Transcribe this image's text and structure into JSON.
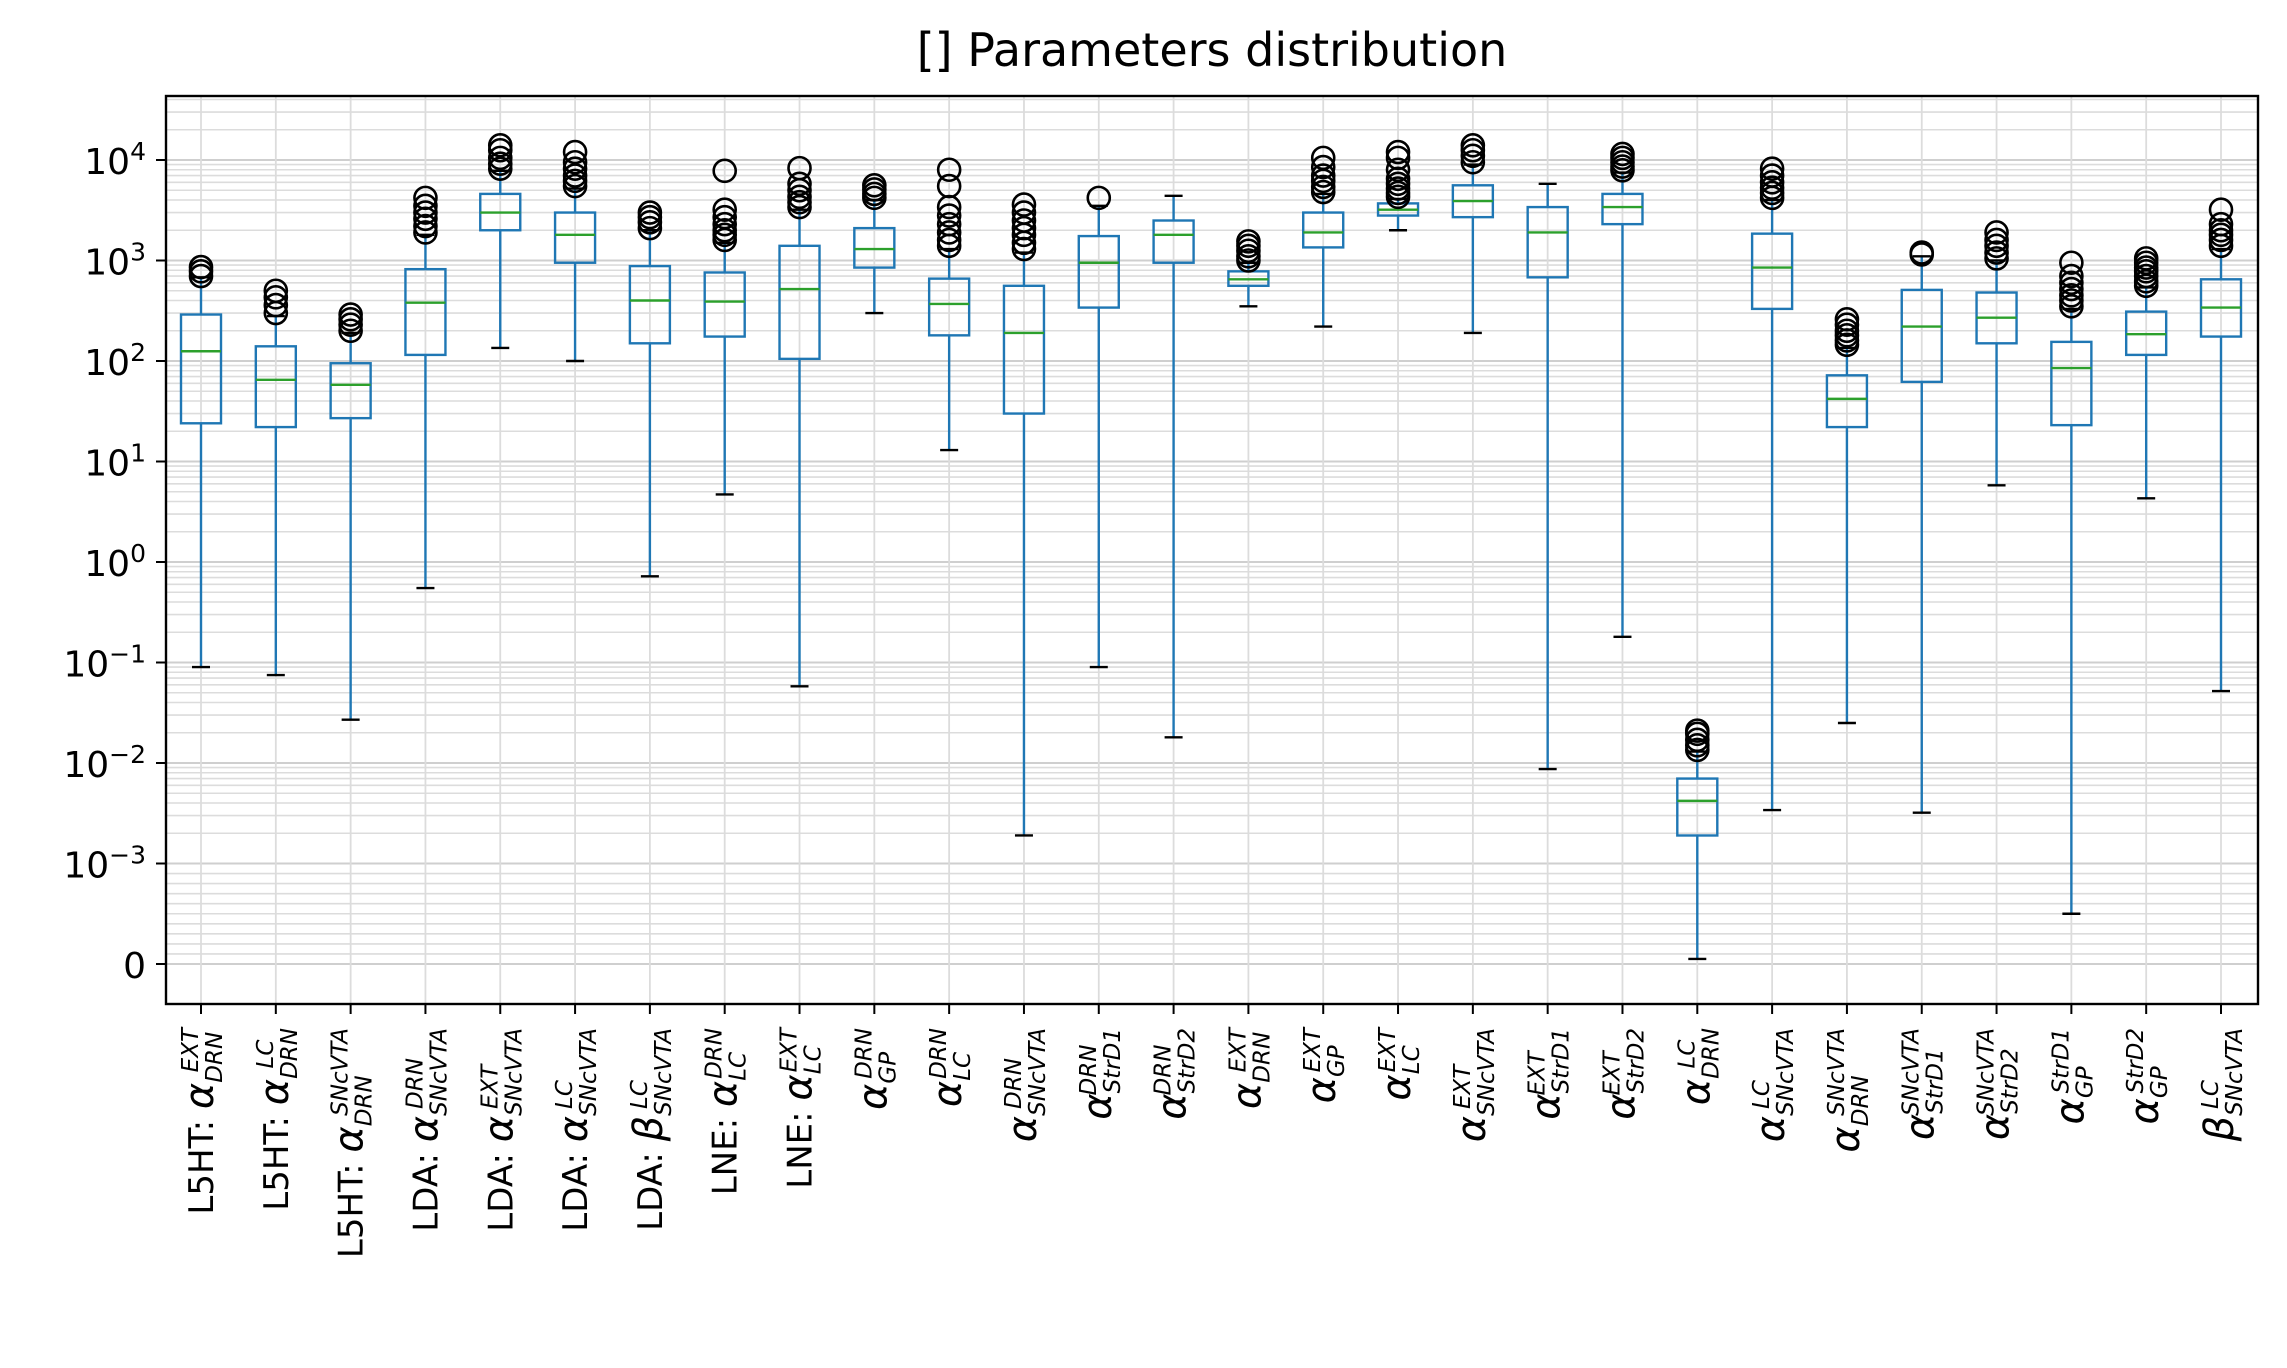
{
  "chart_data": {
    "type": "box",
    "title": "[] Parameters distribution",
    "xlabel": "",
    "ylabel": "",
    "yscale": "symlog",
    "linthresh": 0.001,
    "ylim": [
      -0.0004,
      35000
    ],
    "grid": "both (major and minor), light gray",
    "yticks": [
      {
        "value": 0,
        "base": "0",
        "exp": ""
      },
      {
        "value": 0.001,
        "base": "10",
        "exp": "−3"
      },
      {
        "value": 0.01,
        "base": "10",
        "exp": "−2"
      },
      {
        "value": 0.1,
        "base": "10",
        "exp": "−1"
      },
      {
        "value": 1,
        "base": "10",
        "exp": "0"
      },
      {
        "value": 10,
        "base": "10",
        "exp": "1"
      },
      {
        "value": 100,
        "base": "10",
        "exp": "2"
      },
      {
        "value": 1000,
        "base": "10",
        "exp": "3"
      },
      {
        "value": 10000,
        "base": "10",
        "exp": "4"
      }
    ],
    "colors": {
      "box": "#1f77b4",
      "median": "#2ca02c",
      "flier": "#000000",
      "grid": "#dcdcdc"
    },
    "categories": [
      {
        "prefix": "L5HT: ",
        "sym": "α",
        "sup": "EXT",
        "sub": "DRN"
      },
      {
        "prefix": "L5HT: ",
        "sym": "α",
        "sup": "LC",
        "sub": "DRN"
      },
      {
        "prefix": "L5HT: ",
        "sym": "α",
        "sup": "SNcVTA",
        "sub": "DRN"
      },
      {
        "prefix": "LDA: ",
        "sym": "α",
        "sup": "DRN",
        "sub": "SNcVTA"
      },
      {
        "prefix": "LDA: ",
        "sym": "α",
        "sup": "EXT",
        "sub": "SNcVTA"
      },
      {
        "prefix": "LDA: ",
        "sym": "α",
        "sup": "LC",
        "sub": "SNcVTA"
      },
      {
        "prefix": "LDA: ",
        "sym": "β",
        "sup": "LC",
        "sub": "SNcVTA"
      },
      {
        "prefix": "LNE: ",
        "sym": "α",
        "sup": "DRN",
        "sub": "LC"
      },
      {
        "prefix": "LNE: ",
        "sym": "α",
        "sup": "EXT",
        "sub": "LC"
      },
      {
        "prefix": "",
        "sym": "α",
        "sup": "DRN",
        "sub": "GP"
      },
      {
        "prefix": "",
        "sym": "α",
        "sup": "DRN",
        "sub": "LC"
      },
      {
        "prefix": "",
        "sym": "α",
        "sup": "DRN",
        "sub": "SNcVTA"
      },
      {
        "prefix": "",
        "sym": "α",
        "sup": "DRN",
        "sub": "StrD1"
      },
      {
        "prefix": "",
        "sym": "α",
        "sup": "DRN",
        "sub": "StrD2"
      },
      {
        "prefix": "",
        "sym": "α",
        "sup": "EXT",
        "sub": "DRN"
      },
      {
        "prefix": "",
        "sym": "α",
        "sup": "EXT",
        "sub": "GP"
      },
      {
        "prefix": "",
        "sym": "α",
        "sup": "EXT",
        "sub": "LC"
      },
      {
        "prefix": "",
        "sym": "α",
        "sup": "EXT",
        "sub": "SNcVTA"
      },
      {
        "prefix": "",
        "sym": "α",
        "sup": "EXT",
        "sub": "StrD1"
      },
      {
        "prefix": "",
        "sym": "α",
        "sup": "EXT",
        "sub": "StrD2"
      },
      {
        "prefix": "",
        "sym": "α",
        "sup": "LC",
        "sub": "DRN"
      },
      {
        "prefix": "",
        "sym": "α",
        "sup": "LC",
        "sub": "SNcVTA"
      },
      {
        "prefix": "",
        "sym": "α",
        "sup": "SNcVTA",
        "sub": "DRN"
      },
      {
        "prefix": "",
        "sym": "α",
        "sup": "SNcVTA",
        "sub": "StrD1"
      },
      {
        "prefix": "",
        "sym": "α",
        "sup": "SNcVTA",
        "sub": "StrD2"
      },
      {
        "prefix": "",
        "sym": "α",
        "sup": "StrD1",
        "sub": "GP"
      },
      {
        "prefix": "",
        "sym": "α",
        "sup": "StrD2",
        "sub": "GP"
      },
      {
        "prefix": "",
        "sym": "β",
        "sup": "LC",
        "sub": "SNcVTA"
      }
    ],
    "boxes": [
      {
        "whislo": 0.09,
        "q1": 24,
        "med": 125,
        "q3": 290,
        "whishi": 680,
        "fliers": [
          700,
          780,
          860
        ]
      },
      {
        "whislo": 0.075,
        "q1": 22,
        "med": 65,
        "q3": 140,
        "whishi": 280,
        "fliers": [
          300,
          360,
          430,
          500
        ]
      },
      {
        "whislo": 0.027,
        "q1": 27,
        "med": 58,
        "q3": 95,
        "whishi": 190,
        "fliers": [
          200,
          230,
          260,
          290
        ]
      },
      {
        "whislo": 0.55,
        "q1": 115,
        "med": 380,
        "q3": 820,
        "whishi": 1800,
        "fliers": [
          1900,
          2200,
          2600,
          3000,
          3500,
          4200
        ]
      },
      {
        "whislo": 135,
        "q1": 2000,
        "med": 3000,
        "q3": 4600,
        "whishi": 7800,
        "fliers": [
          8200,
          9200,
          10500,
          12500,
          14000
        ]
      },
      {
        "whislo": 100,
        "q1": 950,
        "med": 1800,
        "q3": 3000,
        "whishi": 5200,
        "fliers": [
          5500,
          6200,
          7000,
          8200,
          9500,
          12000
        ]
      },
      {
        "whislo": 0.72,
        "q1": 150,
        "med": 400,
        "q3": 880,
        "whishi": 2000,
        "fliers": [
          2100,
          2400,
          2700,
          3000
        ]
      },
      {
        "whislo": 4.7,
        "q1": 175,
        "med": 390,
        "q3": 760,
        "whishi": 1500,
        "fliers": [
          1600,
          1800,
          2000,
          2300,
          2700,
          3200,
          7800
        ]
      },
      {
        "whislo": 0.058,
        "q1": 105,
        "med": 520,
        "q3": 1400,
        "whishi": 3200,
        "fliers": [
          3400,
          3800,
          4300,
          5000,
          5800,
          8300
        ]
      },
      {
        "whislo": 300,
        "q1": 850,
        "med": 1300,
        "q3": 2100,
        "whishi": 4000,
        "fliers": [
          4200,
          4600,
          5100,
          5600
        ]
      },
      {
        "whislo": 13,
        "q1": 180,
        "med": 370,
        "q3": 660,
        "whishi": 1300,
        "fliers": [
          1400,
          1600,
          1900,
          2300,
          2800,
          3400,
          5500,
          8000
        ]
      },
      {
        "whislo": 0.0019,
        "q1": 30,
        "med": 190,
        "q3": 560,
        "whishi": 1200,
        "fliers": [
          1300,
          1500,
          1800,
          2100,
          2500,
          3000,
          3600
        ]
      },
      {
        "whislo": 0.09,
        "q1": 340,
        "med": 950,
        "q3": 1750,
        "whishi": 3500,
        "fliers": [
          4200
        ]
      },
      {
        "whislo": 0.018,
        "q1": 950,
        "med": 1800,
        "q3": 2500,
        "whishi": 4400,
        "fliers": []
      },
      {
        "whislo": 350,
        "q1": 560,
        "med": 650,
        "q3": 780,
        "whishi": 950,
        "fliers": [
          1000,
          1100,
          1250,
          1400,
          1550
        ]
      },
      {
        "whislo": 220,
        "q1": 1350,
        "med": 1900,
        "q3": 3000,
        "whishi": 4600,
        "fliers": [
          4800,
          5400,
          6200,
          7000,
          8500,
          10500
        ]
      },
      {
        "whislo": 2000,
        "q1": 2800,
        "med": 3200,
        "q3": 3700,
        "whishi": 4100,
        "fliers": [
          4300,
          4700,
          5200,
          5800,
          6500,
          8000,
          10500,
          12000
        ]
      },
      {
        "whislo": 190,
        "q1": 2700,
        "med": 3900,
        "q3": 5600,
        "whishi": 9000,
        "fliers": [
          9500,
          11000,
          12500,
          14000
        ]
      },
      {
        "whislo": 0.0087,
        "q1": 680,
        "med": 1900,
        "q3": 3400,
        "whishi": 5800,
        "fliers": []
      },
      {
        "whislo": 0.18,
        "q1": 2300,
        "med": 3400,
        "q3": 4600,
        "whishi": 7500,
        "fliers": [
          7900,
          8600,
          9500,
          10500,
          11500
        ]
      },
      {
        "whislo": 5e-05,
        "q1": 0.0019,
        "med": 0.0042,
        "q3": 0.007,
        "whishi": 0.013,
        "fliers": [
          0.0135,
          0.015,
          0.017,
          0.0195,
          0.021
        ]
      },
      {
        "whislo": 0.0034,
        "q1": 330,
        "med": 850,
        "q3": 1850,
        "whishi": 4000,
        "fliers": [
          4200,
          4700,
          5300,
          6000,
          7000,
          8200
        ]
      },
      {
        "whislo": 0.025,
        "q1": 22,
        "med": 42,
        "q3": 72,
        "whishi": 135,
        "fliers": [
          145,
          160,
          180,
          200,
          230,
          260
        ]
      },
      {
        "whislo": 0.0032,
        "q1": 62,
        "med": 220,
        "q3": 510,
        "whishi": 1100,
        "fliers": [
          1150,
          1200
        ]
      },
      {
        "whislo": 5.8,
        "q1": 150,
        "med": 270,
        "q3": 480,
        "whishi": 1000,
        "fliers": [
          1050,
          1200,
          1400,
          1600,
          1900
        ]
      },
      {
        "whislo": 0.0005,
        "q1": 23,
        "med": 85,
        "q3": 155,
        "whishi": 330,
        "fliers": [
          350,
          400,
          450,
          520,
          600,
          700,
          950
        ]
      },
      {
        "whislo": 4.3,
        "q1": 115,
        "med": 185,
        "q3": 310,
        "whishi": 540,
        "fliers": [
          560,
          620,
          700,
          780,
          850,
          950,
          1050
        ]
      },
      {
        "whislo": 0.052,
        "q1": 175,
        "med": 340,
        "q3": 650,
        "whishi": 1300,
        "fliers": [
          1400,
          1600,
          1800,
          2000,
          2300,
          3200
        ]
      }
    ]
  }
}
